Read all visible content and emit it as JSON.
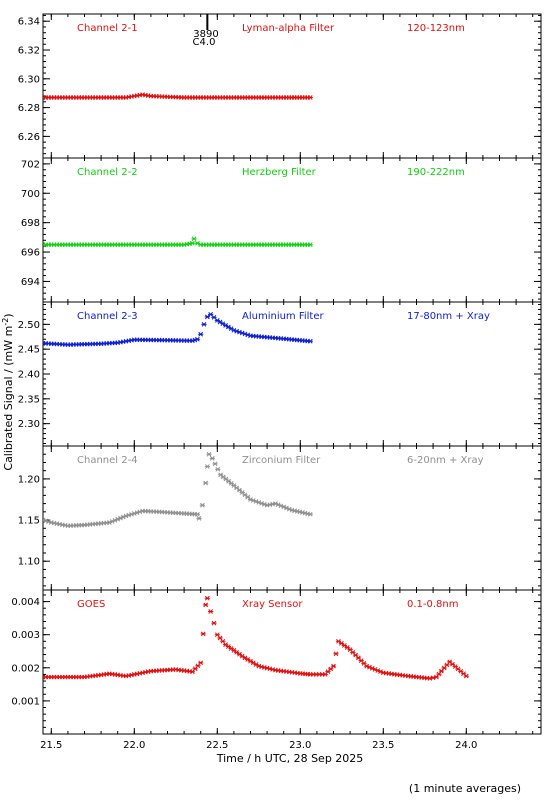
{
  "figure": {
    "ylabel": "Calibrated Signal / (mW m",
    "ylabel_sup": "-2",
    "ylabel_end": ")",
    "xlabel": "Time / h UTC, 28 Sep 2025",
    "footnote": "(1 minute averages)",
    "marker": {
      "label1": "3890",
      "label2": "C4.0",
      "x": 22.44
    },
    "xlim": [
      21.45,
      24.45
    ],
    "xticks": [
      "21.5",
      "22.0",
      "22.5",
      "23.0",
      "23.5",
      "24.0"
    ]
  },
  "chart_data": [
    {
      "type": "scatter",
      "name": "Channel 2-1",
      "filter": "Lyman-alpha Filter",
      "band": "120-123nm",
      "color": "#e01010",
      "ylim": [
        6.245,
        6.345
      ],
      "yticks": [
        "6.26",
        "6.28",
        "6.30",
        "6.32",
        "6.34"
      ],
      "x": [
        21.45,
        21.6,
        21.8,
        21.95,
        22.0,
        22.05,
        22.1,
        22.3,
        22.5,
        22.7,
        22.9,
        23.06
      ],
      "y": [
        6.287,
        6.287,
        6.287,
        6.287,
        6.288,
        6.289,
        6.288,
        6.287,
        6.287,
        6.287,
        6.287,
        6.287
      ]
    },
    {
      "type": "scatter",
      "name": "Channel 2-2",
      "filter": "Herzberg Filter",
      "band": "190-222nm",
      "color": "#10d010",
      "ylim": [
        692.6,
        702.4
      ],
      "yticks": [
        "694",
        "696",
        "698",
        "700",
        "702"
      ],
      "x": [
        21.45,
        21.7,
        22.0,
        22.3,
        22.35,
        22.36,
        22.38,
        22.4,
        22.6,
        22.8,
        23.06
      ],
      "y": [
        696.5,
        696.5,
        696.5,
        696.5,
        696.6,
        696.9,
        696.6,
        696.5,
        696.5,
        696.5,
        696.5
      ]
    },
    {
      "type": "scatter",
      "name": "Channel 2-3",
      "filter": "Aluminium Filter",
      "band": "17-80nm + Xray",
      "color": "#1020d0",
      "ylim": [
        2.255,
        2.545
      ],
      "yticks": [
        "2.30",
        "2.35",
        "2.40",
        "2.45",
        "2.50"
      ],
      "x": [
        21.45,
        21.6,
        21.8,
        21.9,
        22.0,
        22.2,
        22.35,
        22.38,
        22.4,
        22.42,
        22.44,
        22.46,
        22.5,
        22.6,
        22.7,
        22.8,
        22.9,
        23.06
      ],
      "y": [
        2.462,
        2.459,
        2.461,
        2.463,
        2.469,
        2.468,
        2.467,
        2.47,
        2.48,
        2.5,
        2.515,
        2.52,
        2.508,
        2.488,
        2.477,
        2.474,
        2.471,
        2.466
      ]
    },
    {
      "type": "scatter",
      "name": "Channel 2-4",
      "filter": "Zirconium Filter",
      "band": "6-20nm + Xray",
      "color": "#909090",
      "ylim": [
        1.065,
        1.24
      ],
      "yticks": [
        "1.10",
        "1.15",
        "1.20"
      ],
      "x": [
        21.45,
        21.5,
        21.6,
        21.7,
        21.85,
        21.95,
        22.05,
        22.15,
        22.3,
        22.38,
        22.39,
        22.41,
        22.43,
        22.44,
        22.45,
        22.47,
        22.52,
        22.6,
        22.7,
        22.8,
        22.85,
        22.95,
        23.06
      ],
      "y": [
        1.15,
        1.147,
        1.143,
        1.144,
        1.147,
        1.155,
        1.161,
        1.16,
        1.158,
        1.157,
        1.152,
        1.168,
        1.195,
        1.215,
        1.23,
        1.225,
        1.205,
        1.192,
        1.175,
        1.168,
        1.17,
        1.162,
        1.157
      ]
    },
    {
      "type": "scatter",
      "name": "GOES",
      "filter": "Xray Sensor",
      "band": "0.1-0.8nm",
      "color": "#e01010",
      "ylim": [
        0.0,
        0.00435
      ],
      "yticks": [
        "0.001",
        "0.002",
        "0.003",
        "0.004"
      ],
      "x": [
        21.45,
        21.7,
        21.85,
        21.95,
        22.1,
        22.25,
        22.35,
        22.4,
        22.43,
        22.44,
        22.46,
        22.5,
        22.55,
        22.65,
        22.75,
        22.85,
        23.0,
        23.06,
        23.15,
        23.2,
        23.23,
        23.3,
        23.4,
        23.5,
        23.65,
        23.78,
        23.82,
        23.85,
        23.9,
        24.0
      ],
      "y": [
        0.00172,
        0.00172,
        0.00182,
        0.00175,
        0.0019,
        0.00195,
        0.00188,
        0.00215,
        0.0039,
        0.0041,
        0.0037,
        0.003,
        0.0027,
        0.00235,
        0.00205,
        0.00193,
        0.00183,
        0.0018,
        0.0018,
        0.00205,
        0.0028,
        0.00255,
        0.00205,
        0.00185,
        0.00175,
        0.00168,
        0.00172,
        0.0019,
        0.00218,
        0.00175
      ]
    }
  ]
}
